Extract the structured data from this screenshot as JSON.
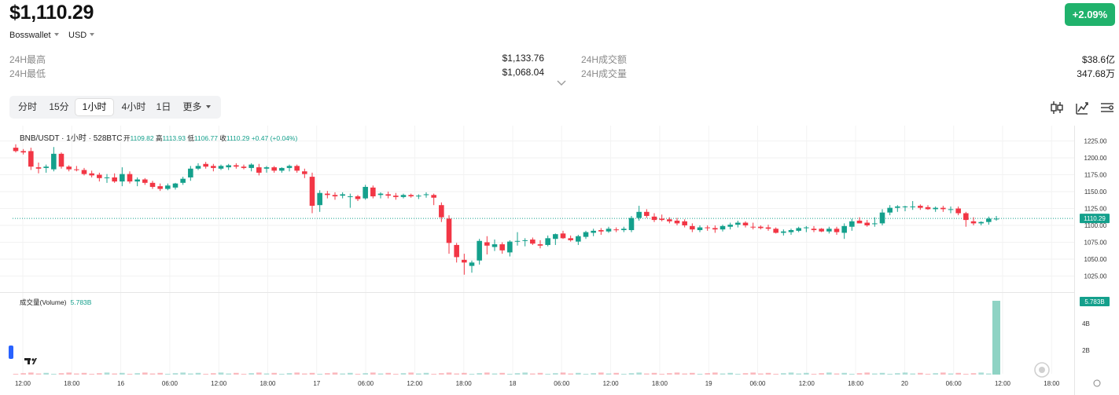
{
  "header": {
    "price": "$1,110.29",
    "wallet": "Bosswallet",
    "currency": "USD",
    "change": "+2.09%"
  },
  "stats": {
    "high_label": "24H最高",
    "high_value": "$1,133.76",
    "low_label": "24H最低",
    "low_value": "$1,068.04",
    "turnover_label": "24H成交额",
    "turnover_value": "$38.6亿",
    "volume_label": "24H成交量",
    "volume_value": "347.68万"
  },
  "timeframes": [
    "分时",
    "15分",
    "1小时",
    "4小时",
    "1日",
    "更多"
  ],
  "active_timeframe": "1小时",
  "toolbar_icons": [
    "candlestick-icon",
    "indicator-icon",
    "settings-icon"
  ],
  "chart_data": {
    "type": "candlestick",
    "symbol": "BNB/USDT",
    "interval": "1小时",
    "exchange": "528BTC",
    "legend": {
      "open_label": "开",
      "open": "1109.82",
      "high_label": "高",
      "high": "1113.93",
      "low_label": "低",
      "low": "1106.77",
      "close_label": "收",
      "close": "1110.29",
      "change": "+0.47 (+0.04%)"
    },
    "price_ticks": [
      1225,
      1200,
      1175,
      1150,
      1125,
      1100,
      1075,
      1050,
      1025
    ],
    "price_tick_labels": [
      "1225.00",
      "1200.00",
      "1175.00",
      "1150.00",
      "1125.00",
      "1100.00",
      "1075.00",
      "1050.00",
      "1025.00"
    ],
    "last_price_label": "1110.29",
    "x_tick_labels": [
      "12:00",
      "18:00",
      "16",
      "06:00",
      "12:00",
      "18:00",
      "17",
      "06:00",
      "12:00",
      "18:00",
      "18",
      "06:00",
      "12:00",
      "18:00",
      "19",
      "06:00",
      "12:00",
      "18:00",
      "20",
      "06:00",
      "12:00",
      "18:00"
    ],
    "volume": {
      "label": "成交量(Volume)",
      "value_label": "5.783B",
      "axis_labels": [
        "4B",
        "2B"
      ],
      "current_bar": 5.783
    },
    "candles": [
      [
        1215,
        1220,
        1208,
        1210
      ],
      [
        1210,
        1213,
        1205,
        1208
      ],
      [
        1210,
        1215,
        1182,
        1187
      ],
      [
        1186,
        1193,
        1177,
        1184
      ],
      [
        1185,
        1190,
        1178,
        1187
      ],
      [
        1183,
        1216,
        1180,
        1206
      ],
      [
        1206,
        1208,
        1184,
        1187
      ],
      [
        1187,
        1189,
        1180,
        1183
      ],
      [
        1183,
        1188,
        1180,
        1182
      ],
      [
        1182,
        1185,
        1174,
        1176
      ],
      [
        1177,
        1181,
        1171,
        1174
      ],
      [
        1175,
        1178,
        1165,
        1170
      ],
      [
        1170,
        1176,
        1163,
        1171
      ],
      [
        1171,
        1177,
        1163,
        1165
      ],
      [
        1165,
        1186,
        1158,
        1176
      ],
      [
        1176,
        1180,
        1162,
        1165
      ],
      [
        1165,
        1171,
        1158,
        1168
      ],
      [
        1168,
        1170,
        1160,
        1163
      ],
      [
        1163,
        1166,
        1154,
        1157
      ],
      [
        1158,
        1162,
        1151,
        1154
      ],
      [
        1154,
        1162,
        1152,
        1159
      ],
      [
        1156,
        1163,
        1153,
        1162
      ],
      [
        1163,
        1172,
        1160,
        1169
      ],
      [
        1171,
        1188,
        1166,
        1184
      ],
      [
        1184,
        1192,
        1182,
        1188
      ],
      [
        1191,
        1194,
        1184,
        1187
      ],
      [
        1188,
        1191,
        1180,
        1185
      ],
      [
        1184,
        1190,
        1182,
        1188
      ],
      [
        1186,
        1191,
        1182,
        1189
      ],
      [
        1189,
        1192,
        1184,
        1187
      ],
      [
        1187,
        1190,
        1183,
        1185
      ],
      [
        1185,
        1192,
        1180,
        1190
      ],
      [
        1186,
        1191,
        1174,
        1178
      ],
      [
        1184,
        1188,
        1178,
        1186
      ],
      [
        1186,
        1188,
        1178,
        1181
      ],
      [
        1181,
        1186,
        1178,
        1185
      ],
      [
        1185,
        1190,
        1180,
        1188
      ],
      [
        1188,
        1190,
        1178,
        1181
      ],
      [
        1180,
        1184,
        1170,
        1176
      ],
      [
        1172,
        1178,
        1118,
        1129
      ],
      [
        1130,
        1152,
        1120,
        1148
      ],
      [
        1147,
        1151,
        1140,
        1145
      ],
      [
        1145,
        1149,
        1138,
        1143
      ],
      [
        1144,
        1149,
        1140,
        1146
      ],
      [
        1142,
        1147,
        1126,
        1143
      ],
      [
        1143,
        1145,
        1136,
        1139
      ],
      [
        1140,
        1160,
        1138,
        1157
      ],
      [
        1156,
        1159,
        1140,
        1143
      ],
      [
        1145,
        1149,
        1140,
        1147
      ],
      [
        1146,
        1150,
        1140,
        1144
      ],
      [
        1144,
        1148,
        1138,
        1142
      ],
      [
        1142,
        1147,
        1140,
        1145
      ],
      [
        1145,
        1147,
        1141,
        1143
      ],
      [
        1143,
        1146,
        1139,
        1144
      ],
      [
        1145,
        1149,
        1141,
        1146
      ],
      [
        1145,
        1147,
        1130,
        1141
      ],
      [
        1130,
        1134,
        1105,
        1112
      ],
      [
        1110,
        1115,
        1058,
        1074
      ],
      [
        1071,
        1074,
        1045,
        1053
      ],
      [
        1049,
        1058,
        1027,
        1045
      ],
      [
        1040,
        1048,
        1030,
        1045
      ],
      [
        1048,
        1080,
        1042,
        1077
      ],
      [
        1075,
        1084,
        1057,
        1070
      ],
      [
        1068,
        1079,
        1062,
        1072
      ],
      [
        1072,
        1075,
        1058,
        1063
      ],
      [
        1060,
        1078,
        1054,
        1076
      ],
      [
        1076,
        1090,
        1070,
        1077
      ],
      [
        1077,
        1081,
        1069,
        1078
      ],
      [
        1079,
        1082,
        1071,
        1073
      ],
      [
        1072,
        1078,
        1066,
        1070
      ],
      [
        1071,
        1085,
        1069,
        1081
      ],
      [
        1080,
        1088,
        1071,
        1087
      ],
      [
        1088,
        1092,
        1080,
        1081
      ],
      [
        1081,
        1085,
        1076,
        1078
      ],
      [
        1076,
        1086,
        1071,
        1084
      ],
      [
        1083,
        1092,
        1080,
        1090
      ],
      [
        1089,
        1095,
        1084,
        1092
      ],
      [
        1093,
        1096,
        1086,
        1091
      ],
      [
        1091,
        1098,
        1089,
        1095
      ],
      [
        1094,
        1097,
        1090,
        1093
      ],
      [
        1093,
        1098,
        1090,
        1095
      ],
      [
        1093,
        1114,
        1090,
        1111
      ],
      [
        1111,
        1129,
        1107,
        1120
      ],
      [
        1120,
        1124,
        1111,
        1114
      ],
      [
        1113,
        1118,
        1105,
        1108
      ],
      [
        1110,
        1116,
        1106,
        1108
      ],
      [
        1109,
        1112,
        1103,
        1106
      ],
      [
        1107,
        1111,
        1100,
        1103
      ],
      [
        1106,
        1109,
        1097,
        1100
      ],
      [
        1099,
        1103,
        1090,
        1094
      ],
      [
        1093,
        1100,
        1090,
        1097
      ],
      [
        1097,
        1100,
        1092,
        1096
      ],
      [
        1096,
        1100,
        1089,
        1094
      ],
      [
        1094,
        1101,
        1091,
        1099
      ],
      [
        1098,
        1104,
        1094,
        1101
      ],
      [
        1101,
        1107,
        1097,
        1104
      ],
      [
        1104,
        1106,
        1097,
        1100
      ],
      [
        1098,
        1104,
        1094,
        1097
      ],
      [
        1098,
        1100,
        1094,
        1096
      ],
      [
        1097,
        1101,
        1092,
        1095
      ],
      [
        1095,
        1097,
        1088,
        1089
      ],
      [
        1089,
        1094,
        1085,
        1091
      ],
      [
        1090,
        1095,
        1086,
        1093
      ],
      [
        1092,
        1098,
        1090,
        1096
      ],
      [
        1096,
        1099,
        1090,
        1097
      ],
      [
        1095,
        1099,
        1090,
        1093
      ],
      [
        1095,
        1096,
        1090,
        1091
      ],
      [
        1091,
        1098,
        1088,
        1095
      ],
      [
        1095,
        1098,
        1086,
        1090
      ],
      [
        1089,
        1103,
        1080,
        1099
      ],
      [
        1098,
        1110,
        1092,
        1106
      ],
      [
        1107,
        1112,
        1103,
        1103
      ],
      [
        1104,
        1108,
        1098,
        1100
      ],
      [
        1102,
        1112,
        1098,
        1103
      ],
      [
        1103,
        1124,
        1100,
        1119
      ],
      [
        1119,
        1130,
        1115,
        1126
      ],
      [
        1126,
        1130,
        1120,
        1128
      ],
      [
        1127,
        1129,
        1121,
        1128
      ],
      [
        1127,
        1136,
        1123,
        1128
      ],
      [
        1129,
        1131,
        1123,
        1126
      ],
      [
        1127,
        1130,
        1123,
        1124
      ],
      [
        1124,
        1128,
        1120,
        1126
      ],
      [
        1126,
        1129,
        1120,
        1124
      ],
      [
        1124,
        1128,
        1118,
        1124
      ],
      [
        1125,
        1128,
        1115,
        1118
      ],
      [
        1118,
        1120,
        1098,
        1108
      ],
      [
        1106,
        1112,
        1100,
        1103
      ],
      [
        1103,
        1106,
        1100,
        1105
      ],
      [
        1105,
        1113,
        1101,
        1110
      ],
      [
        1110,
        1114,
        1107,
        1110
      ]
    ]
  }
}
